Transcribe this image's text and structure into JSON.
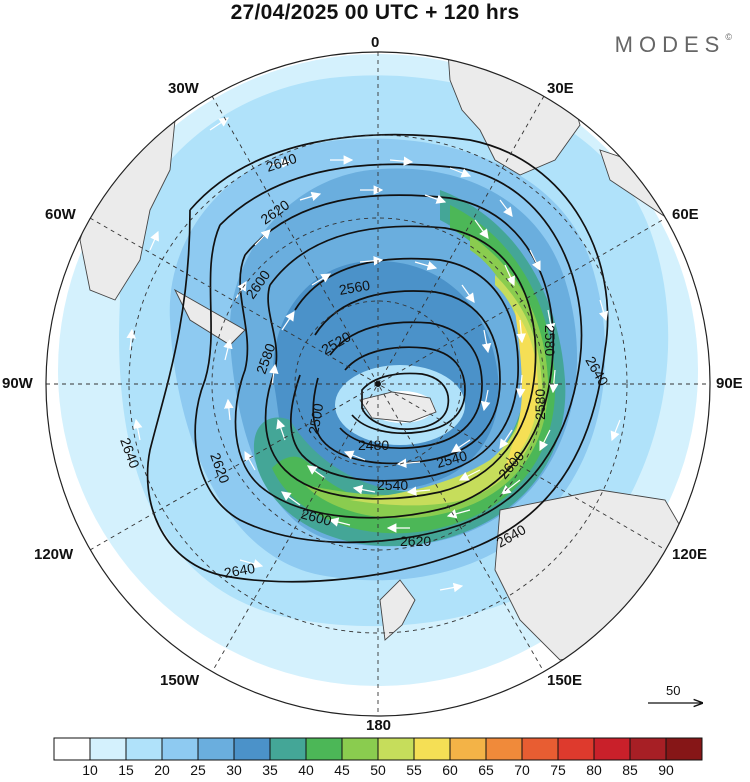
{
  "title": "27/04/2025  00 UTC  + 120 hrs",
  "brand": "MODES",
  "brand_mark": "©",
  "meridian_labels": [
    "0",
    "30E",
    "60E",
    "90E",
    "120E",
    "150E",
    "180",
    "150W",
    "120W",
    "90W",
    "60W",
    "30W"
  ],
  "contour_labels": [
    "2640",
    "2620",
    "2600",
    "2580",
    "2560",
    "2540",
    "2520",
    "2500",
    "2480"
  ],
  "reference_vector": {
    "value": "50"
  },
  "colorbar": {
    "ticks": [
      "10",
      "15",
      "20",
      "25",
      "30",
      "35",
      "40",
      "45",
      "50",
      "55",
      "60",
      "65",
      "70",
      "75",
      "80",
      "85",
      "90"
    ],
    "colors": [
      "#ffffff",
      "#d4f1fd",
      "#b0e2fa",
      "#8ecaf1",
      "#6aaede",
      "#4b92c9",
      "#44a697",
      "#4cb757",
      "#8acc4f",
      "#c6dd5b",
      "#f5df55",
      "#f3b347",
      "#f08a3a",
      "#e85d32",
      "#de3a2d",
      "#c9202a",
      "#a71f25",
      "#861617"
    ]
  },
  "colors": {
    "land": "#ebebeb",
    "coast": "#444444",
    "contour": "#111111",
    "grid": "#333333"
  }
}
